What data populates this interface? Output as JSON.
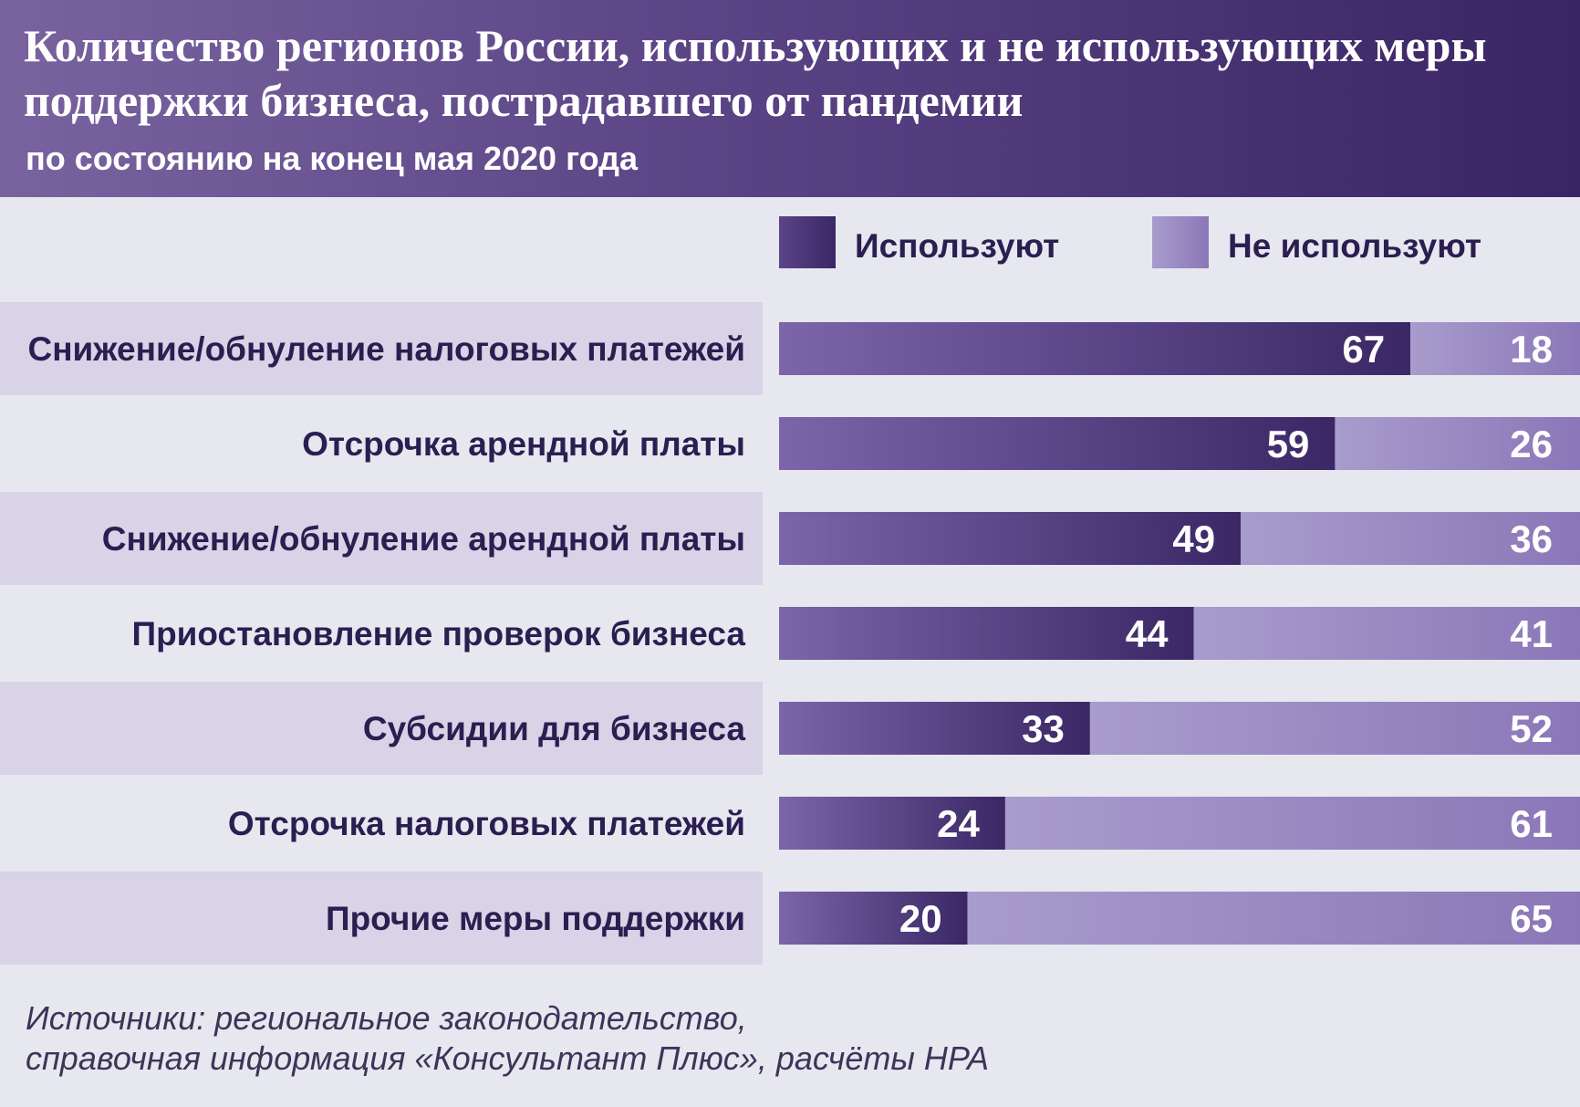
{
  "header": {
    "title": "Количество регионов России, использующих и не использующих меры поддержки бизнеса, пострадавшего от пандемии",
    "subtitle": "по состоянию на конец мая 2020 года"
  },
  "colors": {
    "used_start": "#7c65a8",
    "used_end": "#3b2766",
    "notused_start": "#a89ccc",
    "notused_end": "#8b77b8",
    "label_band": "#d8d3e6",
    "background": "#e7e7f0",
    "label_text": "#2b1e50"
  },
  "chart_data": {
    "type": "bar",
    "orientation": "horizontal",
    "stacked": true,
    "categories": [
      "Снижение/обнуление налоговых платежей",
      "Отсрочка арендной платы",
      "Снижение/обнуление арендной платы",
      "Приостановление проверок бизнеса",
      "Субсидии для бизнеса",
      "Отсрочка налоговых платежей",
      "Прочие меры поддержки"
    ],
    "series": [
      {
        "name": "Используют",
        "values": [
          67,
          59,
          49,
          44,
          33,
          24,
          20
        ]
      },
      {
        "name": "Не используют",
        "values": [
          18,
          26,
          36,
          41,
          52,
          61,
          65
        ]
      }
    ],
    "xlim": [
      0,
      85
    ],
    "legend_position": "top-right",
    "grid": false
  },
  "source": {
    "line1": "Источники: региональное законодательство,",
    "line2": "справочная информация «Консультант Плюс», расчёты НРА"
  }
}
